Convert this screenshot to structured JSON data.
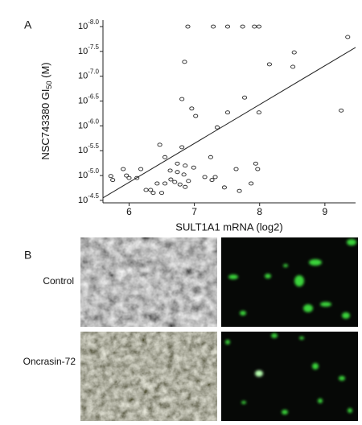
{
  "chart_data": {
    "type": "scatter",
    "panel_a": "A",
    "panel_b": "B",
    "x_label": "SULT1A1 mRNA (log2)",
    "y_label": [
      "NSC743380 GI",
      "50",
      " (M)"
    ],
    "xlim": [
      5.6,
      9.47
    ],
    "ylim": [
      -4.45,
      -8.13
    ],
    "xticks": [
      6,
      7,
      8,
      9
    ],
    "yticks": [
      {
        "value": -8.0,
        "label": "10",
        "exponent": "-8.0"
      },
      {
        "value": -7.5,
        "label": "10",
        "exponent": "-7.5"
      },
      {
        "value": -7.0,
        "label": "10",
        "exponent": "-7.0"
      },
      {
        "value": -6.5,
        "label": "10",
        "exponent": "-6.5"
      },
      {
        "value": -6.0,
        "label": "10",
        "exponent": "-6.0"
      },
      {
        "value": -5.5,
        "label": "10",
        "exponent": "-5.5"
      },
      {
        "value": -5.0,
        "label": "10",
        "exponent": "-5.0"
      },
      {
        "value": -4.5,
        "label": "10",
        "exponent": "-4.5"
      }
    ],
    "color": "#222222",
    "x": [
      6.9,
      7.29,
      7.51,
      7.74,
      7.92,
      7.99,
      9.35,
      6.85,
      8.15,
      8.51,
      8.53,
      7.77,
      6.81,
      6.96,
      7.51,
      7.99,
      9.25,
      7.02,
      7.35,
      6.47,
      6.81,
      6.55,
      7.25,
      5.91,
      6.18,
      5.96,
      6.0,
      5.72,
      5.75,
      6.12,
      6.63,
      6.74,
      6.86,
      6.99,
      6.74,
      6.84,
      6.64,
      6.55,
      6.7,
      6.78,
      6.86,
      6.91,
      7.16,
      7.32,
      7.27,
      7.64,
      7.94,
      7.97,
      7.87,
      6.26,
      6.33,
      6.37,
      6.5,
      7.46,
      7.69,
      6.43
    ],
    "values": [
      -8.0,
      -8.0,
      -8.0,
      -8.0,
      -8.0,
      -8.0,
      -7.79,
      -7.29,
      -7.24,
      -7.19,
      -7.48,
      -6.57,
      -6.54,
      -6.35,
      -6.27,
      -6.27,
      -6.31,
      -6.2,
      -5.97,
      -5.62,
      -5.57,
      -5.37,
      -5.37,
      -5.13,
      -5.13,
      -5.0,
      -4.95,
      -4.99,
      -4.91,
      -4.95,
      -5.1,
      -5.24,
      -5.2,
      -5.16,
      -5.07,
      -5.02,
      -4.92,
      -4.84,
      -4.87,
      -4.82,
      -4.77,
      -4.89,
      -4.97,
      -4.97,
      -4.91,
      -5.13,
      -5.24,
      -5.13,
      -4.84,
      -4.71,
      -4.71,
      -4.65,
      -4.65,
      -4.76,
      -4.69,
      -4.84
    ],
    "fit_line": {
      "x": [
        5.6,
        9.47
      ],
      "y": [
        -4.55,
        -7.58
      ]
    },
    "image_labels": [
      "Control",
      "Oncrasin-72"
    ]
  }
}
